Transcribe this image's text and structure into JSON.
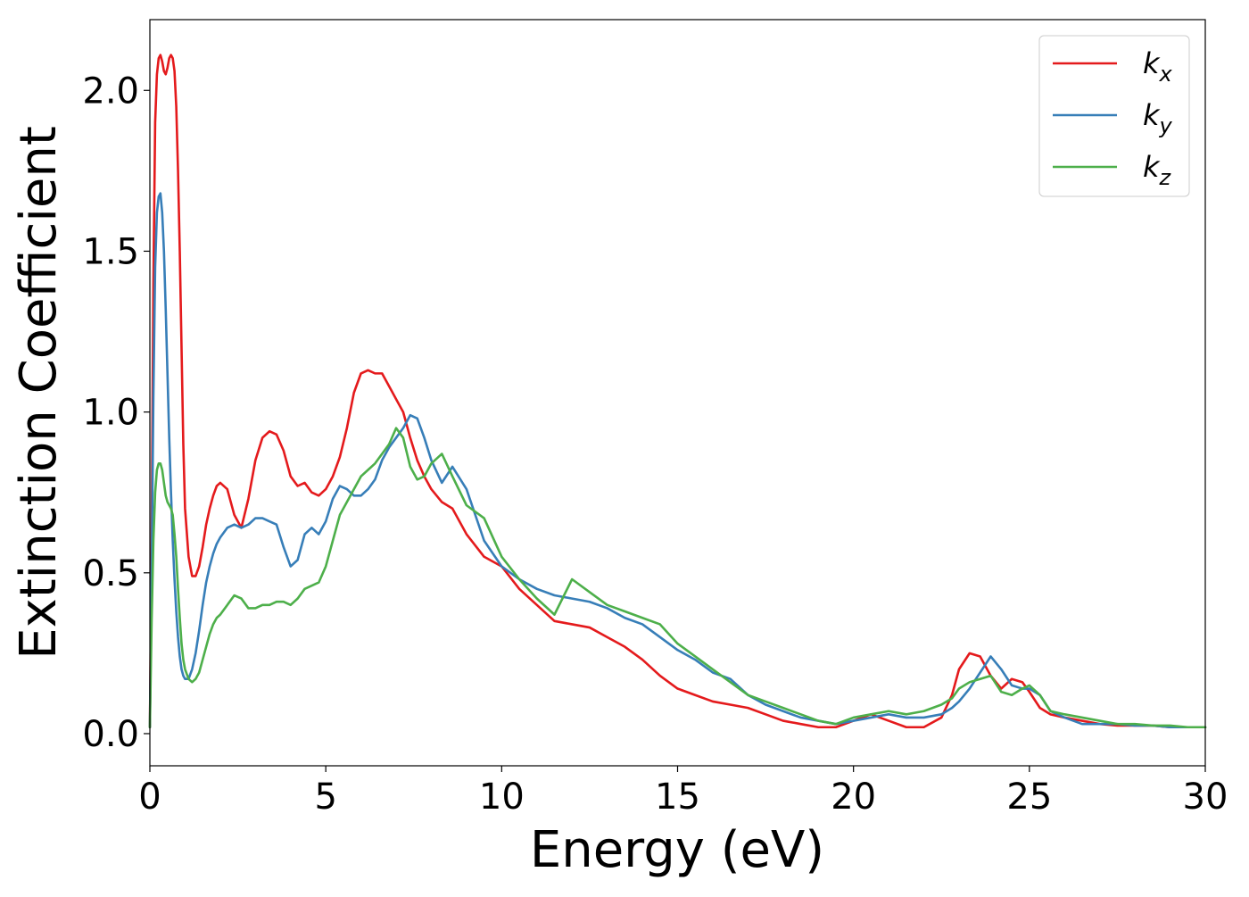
{
  "chart_data": {
    "type": "line",
    "title": "",
    "xlabel": "Energy (eV)",
    "ylabel": "Extinction Coefficient",
    "xlim": [
      0,
      30
    ],
    "ylim": [
      -0.1,
      2.22
    ],
    "xticks": [
      0,
      5,
      10,
      15,
      20,
      25,
      30
    ],
    "xtick_labels": [
      "0",
      "5",
      "10",
      "15",
      "20",
      "25",
      "30"
    ],
    "yticks": [
      0.0,
      0.5,
      1.0,
      1.5,
      2.0
    ],
    "ytick_labels": [
      "0.0",
      "0.5",
      "1.0",
      "1.5",
      "2.0"
    ],
    "grid": false,
    "legend_position": "top-right",
    "series": [
      {
        "name": "k_x",
        "label_main": "k",
        "label_sub": "x",
        "color": "#e41a1c",
        "x": [
          0.0,
          0.05,
          0.1,
          0.15,
          0.2,
          0.25,
          0.3,
          0.35,
          0.4,
          0.45,
          0.5,
          0.55,
          0.6,
          0.65,
          0.7,
          0.75,
          0.8,
          0.85,
          0.9,
          0.95,
          1.0,
          1.1,
          1.2,
          1.3,
          1.4,
          1.5,
          1.6,
          1.7,
          1.8,
          1.9,
          2.0,
          2.2,
          2.4,
          2.6,
          2.8,
          3.0,
          3.2,
          3.4,
          3.6,
          3.8,
          4.0,
          4.2,
          4.4,
          4.6,
          4.8,
          5.0,
          5.2,
          5.4,
          5.6,
          5.8,
          6.0,
          6.2,
          6.4,
          6.6,
          6.8,
          7.0,
          7.2,
          7.4,
          7.6,
          7.8,
          8.0,
          8.3,
          8.6,
          9.0,
          9.5,
          10.0,
          10.5,
          11.0,
          11.5,
          12.0,
          12.5,
          13.0,
          13.5,
          14.0,
          14.5,
          15.0,
          15.5,
          16.0,
          16.5,
          17.0,
          17.5,
          18.0,
          18.5,
          19.0,
          19.5,
          20.0,
          20.5,
          21.0,
          21.5,
          22.0,
          22.5,
          22.8,
          23.0,
          23.3,
          23.6,
          23.9,
          24.2,
          24.5,
          24.8,
          25.0,
          25.3,
          25.6,
          26.0,
          26.5,
          27.0,
          27.5,
          28.0,
          28.5,
          29.0,
          29.5,
          30.0
        ],
        "y": [
          0.02,
          0.6,
          1.4,
          1.9,
          2.05,
          2.1,
          2.11,
          2.09,
          2.06,
          2.05,
          2.07,
          2.1,
          2.11,
          2.1,
          2.06,
          1.95,
          1.75,
          1.5,
          1.2,
          0.9,
          0.7,
          0.55,
          0.49,
          0.49,
          0.52,
          0.58,
          0.65,
          0.7,
          0.74,
          0.77,
          0.78,
          0.76,
          0.68,
          0.64,
          0.73,
          0.85,
          0.92,
          0.94,
          0.93,
          0.88,
          0.8,
          0.77,
          0.78,
          0.75,
          0.74,
          0.76,
          0.8,
          0.86,
          0.95,
          1.06,
          1.12,
          1.13,
          1.12,
          1.12,
          1.08,
          1.04,
          1.0,
          0.92,
          0.85,
          0.8,
          0.76,
          0.72,
          0.7,
          0.62,
          0.55,
          0.52,
          0.45,
          0.4,
          0.35,
          0.34,
          0.33,
          0.3,
          0.27,
          0.23,
          0.18,
          0.14,
          0.12,
          0.1,
          0.09,
          0.08,
          0.06,
          0.04,
          0.03,
          0.02,
          0.02,
          0.04,
          0.06,
          0.04,
          0.02,
          0.02,
          0.05,
          0.12,
          0.2,
          0.25,
          0.24,
          0.18,
          0.14,
          0.17,
          0.16,
          0.13,
          0.08,
          0.06,
          0.05,
          0.04,
          0.03,
          0.025,
          0.025,
          0.025,
          0.02,
          0.02,
          0.02
        ]
      },
      {
        "name": "k_y",
        "label_main": "k",
        "label_sub": "y",
        "color": "#377eb8",
        "x": [
          0.0,
          0.05,
          0.1,
          0.15,
          0.2,
          0.25,
          0.3,
          0.35,
          0.4,
          0.45,
          0.5,
          0.55,
          0.6,
          0.65,
          0.7,
          0.75,
          0.8,
          0.85,
          0.9,
          0.95,
          1.0,
          1.1,
          1.2,
          1.3,
          1.4,
          1.5,
          1.6,
          1.7,
          1.8,
          1.9,
          2.0,
          2.2,
          2.4,
          2.6,
          2.8,
          3.0,
          3.2,
          3.4,
          3.6,
          3.8,
          4.0,
          4.2,
          4.4,
          4.6,
          4.8,
          5.0,
          5.2,
          5.4,
          5.6,
          5.8,
          6.0,
          6.2,
          6.4,
          6.6,
          6.8,
          7.0,
          7.2,
          7.4,
          7.6,
          7.8,
          8.0,
          8.3,
          8.6,
          9.0,
          9.5,
          10.0,
          10.5,
          11.0,
          11.5,
          12.0,
          12.5,
          13.0,
          13.5,
          14.0,
          14.5,
          15.0,
          15.5,
          16.0,
          16.5,
          17.0,
          17.5,
          18.0,
          18.5,
          19.0,
          19.5,
          20.0,
          20.5,
          21.0,
          21.5,
          22.0,
          22.5,
          22.8,
          23.0,
          23.3,
          23.6,
          23.9,
          24.2,
          24.5,
          24.8,
          25.0,
          25.3,
          25.6,
          26.0,
          26.5,
          27.0,
          27.5,
          28.0,
          28.5,
          29.0,
          29.5,
          30.0
        ],
        "y": [
          0.02,
          0.5,
          1.05,
          1.45,
          1.62,
          1.67,
          1.68,
          1.62,
          1.5,
          1.32,
          1.12,
          0.92,
          0.75,
          0.6,
          0.48,
          0.38,
          0.3,
          0.24,
          0.2,
          0.18,
          0.17,
          0.17,
          0.2,
          0.25,
          0.32,
          0.4,
          0.47,
          0.52,
          0.56,
          0.59,
          0.61,
          0.64,
          0.65,
          0.64,
          0.65,
          0.67,
          0.67,
          0.66,
          0.65,
          0.58,
          0.52,
          0.54,
          0.62,
          0.64,
          0.62,
          0.66,
          0.73,
          0.77,
          0.76,
          0.74,
          0.74,
          0.76,
          0.79,
          0.85,
          0.89,
          0.92,
          0.95,
          0.99,
          0.98,
          0.92,
          0.85,
          0.78,
          0.83,
          0.76,
          0.6,
          0.52,
          0.48,
          0.45,
          0.43,
          0.42,
          0.41,
          0.39,
          0.36,
          0.34,
          0.3,
          0.26,
          0.23,
          0.19,
          0.17,
          0.12,
          0.09,
          0.07,
          0.05,
          0.04,
          0.03,
          0.04,
          0.05,
          0.06,
          0.05,
          0.05,
          0.06,
          0.08,
          0.1,
          0.14,
          0.19,
          0.24,
          0.2,
          0.15,
          0.14,
          0.14,
          0.12,
          0.07,
          0.05,
          0.03,
          0.03,
          0.03,
          0.025,
          0.025,
          0.02,
          0.02,
          0.02
        ]
      },
      {
        "name": "k_z",
        "label_main": "k",
        "label_sub": "z",
        "color": "#4daf4a",
        "x": [
          0.0,
          0.05,
          0.1,
          0.15,
          0.2,
          0.25,
          0.3,
          0.35,
          0.4,
          0.45,
          0.5,
          0.55,
          0.6,
          0.65,
          0.7,
          0.75,
          0.8,
          0.85,
          0.9,
          0.95,
          1.0,
          1.1,
          1.2,
          1.3,
          1.4,
          1.5,
          1.6,
          1.7,
          1.8,
          1.9,
          2.0,
          2.2,
          2.4,
          2.6,
          2.8,
          3.0,
          3.2,
          3.4,
          3.6,
          3.8,
          4.0,
          4.2,
          4.4,
          4.6,
          4.8,
          5.0,
          5.2,
          5.4,
          5.6,
          5.8,
          6.0,
          6.2,
          6.4,
          6.6,
          6.8,
          7.0,
          7.2,
          7.4,
          7.6,
          7.8,
          8.0,
          8.3,
          8.6,
          9.0,
          9.5,
          10.0,
          10.5,
          11.0,
          11.5,
          12.0,
          12.5,
          13.0,
          13.5,
          14.0,
          14.5,
          15.0,
          15.5,
          16.0,
          16.5,
          17.0,
          17.5,
          18.0,
          18.5,
          19.0,
          19.5,
          20.0,
          20.5,
          21.0,
          21.5,
          22.0,
          22.5,
          22.8,
          23.0,
          23.3,
          23.6,
          23.9,
          24.2,
          24.5,
          24.8,
          25.0,
          25.3,
          25.6,
          26.0,
          26.5,
          27.0,
          27.5,
          28.0,
          28.5,
          29.0,
          29.5,
          30.0
        ],
        "y": [
          0.02,
          0.35,
          0.6,
          0.75,
          0.82,
          0.84,
          0.84,
          0.82,
          0.78,
          0.74,
          0.72,
          0.71,
          0.7,
          0.68,
          0.62,
          0.55,
          0.45,
          0.36,
          0.28,
          0.23,
          0.2,
          0.17,
          0.16,
          0.17,
          0.19,
          0.23,
          0.27,
          0.31,
          0.34,
          0.36,
          0.37,
          0.4,
          0.43,
          0.42,
          0.39,
          0.39,
          0.4,
          0.4,
          0.41,
          0.41,
          0.4,
          0.42,
          0.45,
          0.46,
          0.47,
          0.52,
          0.6,
          0.68,
          0.72,
          0.76,
          0.8,
          0.82,
          0.84,
          0.87,
          0.9,
          0.95,
          0.92,
          0.83,
          0.79,
          0.8,
          0.84,
          0.87,
          0.8,
          0.71,
          0.67,
          0.55,
          0.48,
          0.42,
          0.37,
          0.48,
          0.44,
          0.4,
          0.38,
          0.36,
          0.34,
          0.28,
          0.24,
          0.2,
          0.16,
          0.12,
          0.1,
          0.08,
          0.06,
          0.04,
          0.03,
          0.05,
          0.06,
          0.07,
          0.06,
          0.07,
          0.09,
          0.11,
          0.14,
          0.16,
          0.17,
          0.18,
          0.13,
          0.12,
          0.14,
          0.15,
          0.12,
          0.07,
          0.06,
          0.05,
          0.04,
          0.03,
          0.03,
          0.025,
          0.025,
          0.02,
          0.02
        ]
      }
    ]
  }
}
